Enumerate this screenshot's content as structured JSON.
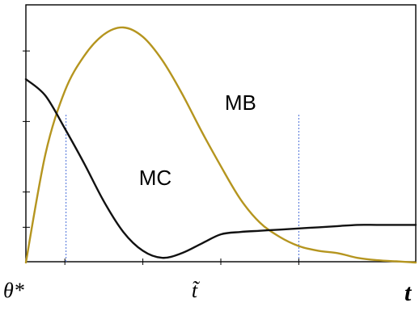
{
  "chart_data": {
    "type": "line",
    "xlim": [
      0,
      10
    ],
    "ylim": [
      0,
      1
    ],
    "grid": false,
    "series": [
      {
        "name": "MB",
        "color": "#b5951f",
        "x": [
          0,
          0.5,
          1,
          1.5,
          2,
          2.5,
          3,
          3.5,
          4,
          4.5,
          5,
          5.5,
          6,
          6.5,
          7,
          7.5,
          8,
          8.5,
          9,
          9.5,
          10
        ],
        "y": [
          0.0,
          0.46,
          0.73,
          0.88,
          0.97,
          1.0,
          0.96,
          0.86,
          0.72,
          0.56,
          0.41,
          0.27,
          0.17,
          0.11,
          0.07,
          0.05,
          0.04,
          0.02,
          0.01,
          0.005,
          0.0
        ]
      },
      {
        "name": "MC",
        "color": "#111111",
        "x": [
          0,
          0.5,
          1,
          1.5,
          2,
          2.5,
          3,
          3.5,
          4,
          4.5,
          5,
          5.5,
          6,
          6.5,
          7,
          7.5,
          8,
          8.5,
          9,
          9.5,
          10
        ],
        "y": [
          0.78,
          0.71,
          0.57,
          0.42,
          0.26,
          0.13,
          0.05,
          0.02,
          0.04,
          0.08,
          0.12,
          0.13,
          0.135,
          0.14,
          0.145,
          0.15,
          0.155,
          0.16,
          0.16,
          0.16,
          0.16
        ]
      }
    ],
    "series_labels": [
      {
        "text": "MB",
        "x": 5.1,
        "y": 0.65
      },
      {
        "text": "MC",
        "x": 2.9,
        "y": 0.33
      }
    ],
    "guides": [
      {
        "x": 1.03,
        "color": "#4a6fd8"
      },
      {
        "x": 7.0,
        "color": "#4a6fd8"
      }
    ],
    "x_labels": [
      {
        "text": "θ*",
        "x": -0.4
      },
      {
        "text": "t̃",
        "x": 4.25
      },
      {
        "text": "t",
        "x": 10.6
      }
    ],
    "y_tick_values": [
      0.15,
      0.3,
      0.6,
      0.9
    ],
    "x_tick_values": [
      1.0,
      3.0,
      5.0,
      7.0
    ]
  }
}
